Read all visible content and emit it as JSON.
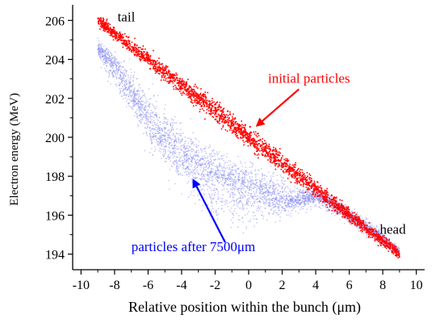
{
  "chart_data": {
    "type": "scatter",
    "xlabel": "Relative position within the bunch (μm)",
    "ylabel": "Electron energy (MeV)",
    "xlim": [
      -10.5,
      10.5
    ],
    "ylim": [
      193.2,
      206.8
    ],
    "x_ticks": [
      -10,
      -8,
      -6,
      -4,
      -2,
      0,
      2,
      4,
      6,
      8,
      10
    ],
    "y_ticks": [
      194,
      196,
      198,
      200,
      202,
      204,
      206
    ],
    "grid": false,
    "series": [
      {
        "name": "initial particles",
        "color": "#ff0000",
        "line_x": [
          -9,
          9
        ],
        "line_y": [
          206.0,
          194.0
        ],
        "spread_mev": 0.25
      },
      {
        "name": "particles after 7500μm",
        "color": "#8c8ff0",
        "centerline": {
          "x": [
            -9,
            -8,
            -7,
            -6,
            -5,
            -4,
            -3,
            -2,
            -1,
            0,
            1,
            2,
            3,
            4,
            5,
            6,
            7,
            8,
            9
          ],
          "y": [
            204.6,
            203.6,
            202.3,
            201.0,
            199.9,
            199.0,
            198.5,
            198.0,
            197.7,
            197.4,
            197.1,
            196.8,
            196.8,
            197.0,
            196.6,
            196.0,
            195.4,
            194.8,
            194.1
          ]
        },
        "lower_edge": {
          "x": [
            -9,
            -8,
            -7,
            -6,
            -5,
            -4,
            -3,
            -2,
            -1,
            0,
            1,
            2,
            3,
            4,
            5,
            6,
            7,
            8,
            9
          ],
          "y": [
            204.2,
            202.6,
            201.0,
            199.6,
            198.4,
            197.4,
            196.6,
            195.6,
            195.5,
            195.6,
            195.8,
            196.0,
            196.3,
            196.5,
            196.1,
            195.6,
            195.0,
            194.4,
            194.0
          ]
        },
        "upper_edge": {
          "x": [
            -9,
            -8,
            -7,
            -6,
            -5,
            -4,
            -3,
            -2,
            -1,
            0,
            1,
            2,
            3,
            4,
            5,
            6,
            7,
            8,
            9
          ],
          "y": [
            205.0,
            204.4,
            203.5,
            202.4,
            201.4,
            200.6,
            199.9,
            199.3,
            198.9,
            198.6,
            198.2,
            197.8,
            197.5,
            197.3,
            197.0,
            196.4,
            195.8,
            195.1,
            194.3
          ]
        }
      }
    ],
    "annotations": [
      {
        "text": "tail",
        "x": -7.3,
        "y": 205.95,
        "color": "#000000"
      },
      {
        "text": "head",
        "x": 8.6,
        "y": 195.05,
        "color": "#000000"
      },
      {
        "text": "initial particles",
        "x": 3.6,
        "y": 202.8,
        "color": "#ff0000",
        "arrow_to": [
          0.5,
          200.6
        ]
      },
      {
        "text": "particles after 7500μm",
        "x": -3.3,
        "y": 194.15,
        "color": "#0000ff",
        "arrow_to": [
          -3.3,
          197.8
        ],
        "arrow_from": [
          -7.0,
          194.6
        ]
      }
    ]
  }
}
